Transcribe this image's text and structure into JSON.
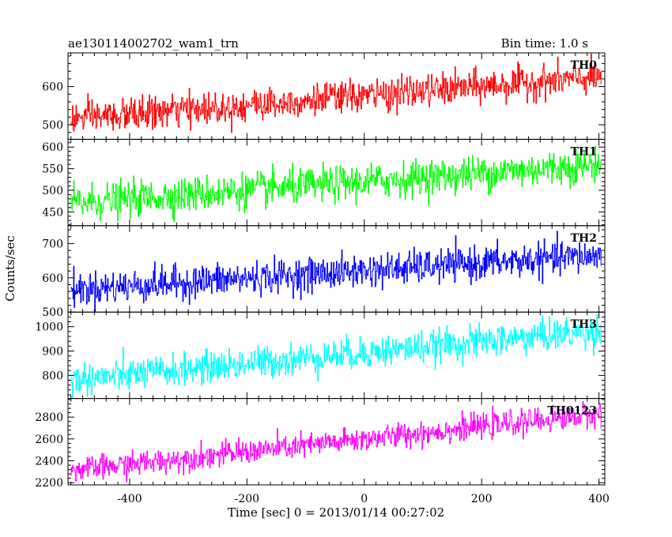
{
  "header": {
    "title_left": "ae130114002702_wam1_trn",
    "title_right": "Bin time: 1.0 s"
  },
  "chart_data": {
    "type": "line",
    "xlabel": "Time [sec] 0 = 2013/01/14 00:27:02",
    "ylabel": "Counts/sec",
    "xlim": [
      -505,
      410
    ],
    "xticks": [
      -400,
      -200,
      0,
      200,
      400
    ],
    "x_range": [
      -500,
      404
    ],
    "bin_time": 1.0,
    "grid": false,
    "panels": [
      {
        "name": "TH0",
        "color": "#ff0000",
        "ylim": [
          462,
          688
        ],
        "yticks": [
          500,
          600
        ],
        "trend_start": 515,
        "trend_end": 625,
        "noise": 21
      },
      {
        "name": "TH1",
        "color": "#00ff00",
        "ylim": [
          418,
          618
        ],
        "yticks": [
          450,
          500,
          550,
          600
        ],
        "trend_start": 470,
        "trend_end": 560,
        "noise": 20
      },
      {
        "name": "TH2",
        "color": "#0000ff",
        "ylim": [
          500,
          752
        ],
        "yticks": [
          500,
          600,
          700
        ],
        "trend_start": 565,
        "trend_end": 665,
        "noise": 24
      },
      {
        "name": "TH3",
        "color": "#00ffff",
        "ylim": [
          705,
          1060
        ],
        "yticks": [
          800,
          900,
          1000
        ],
        "trend_start": 780,
        "trend_end": 985,
        "noise": 32
      },
      {
        "name": "TH0123",
        "color": "#ff00ff",
        "ylim": [
          2180,
          2970
        ],
        "yticks": [
          2200,
          2400,
          2600,
          2800
        ],
        "trend_start": 2310,
        "trend_end": 2830,
        "noise": 55
      }
    ]
  }
}
